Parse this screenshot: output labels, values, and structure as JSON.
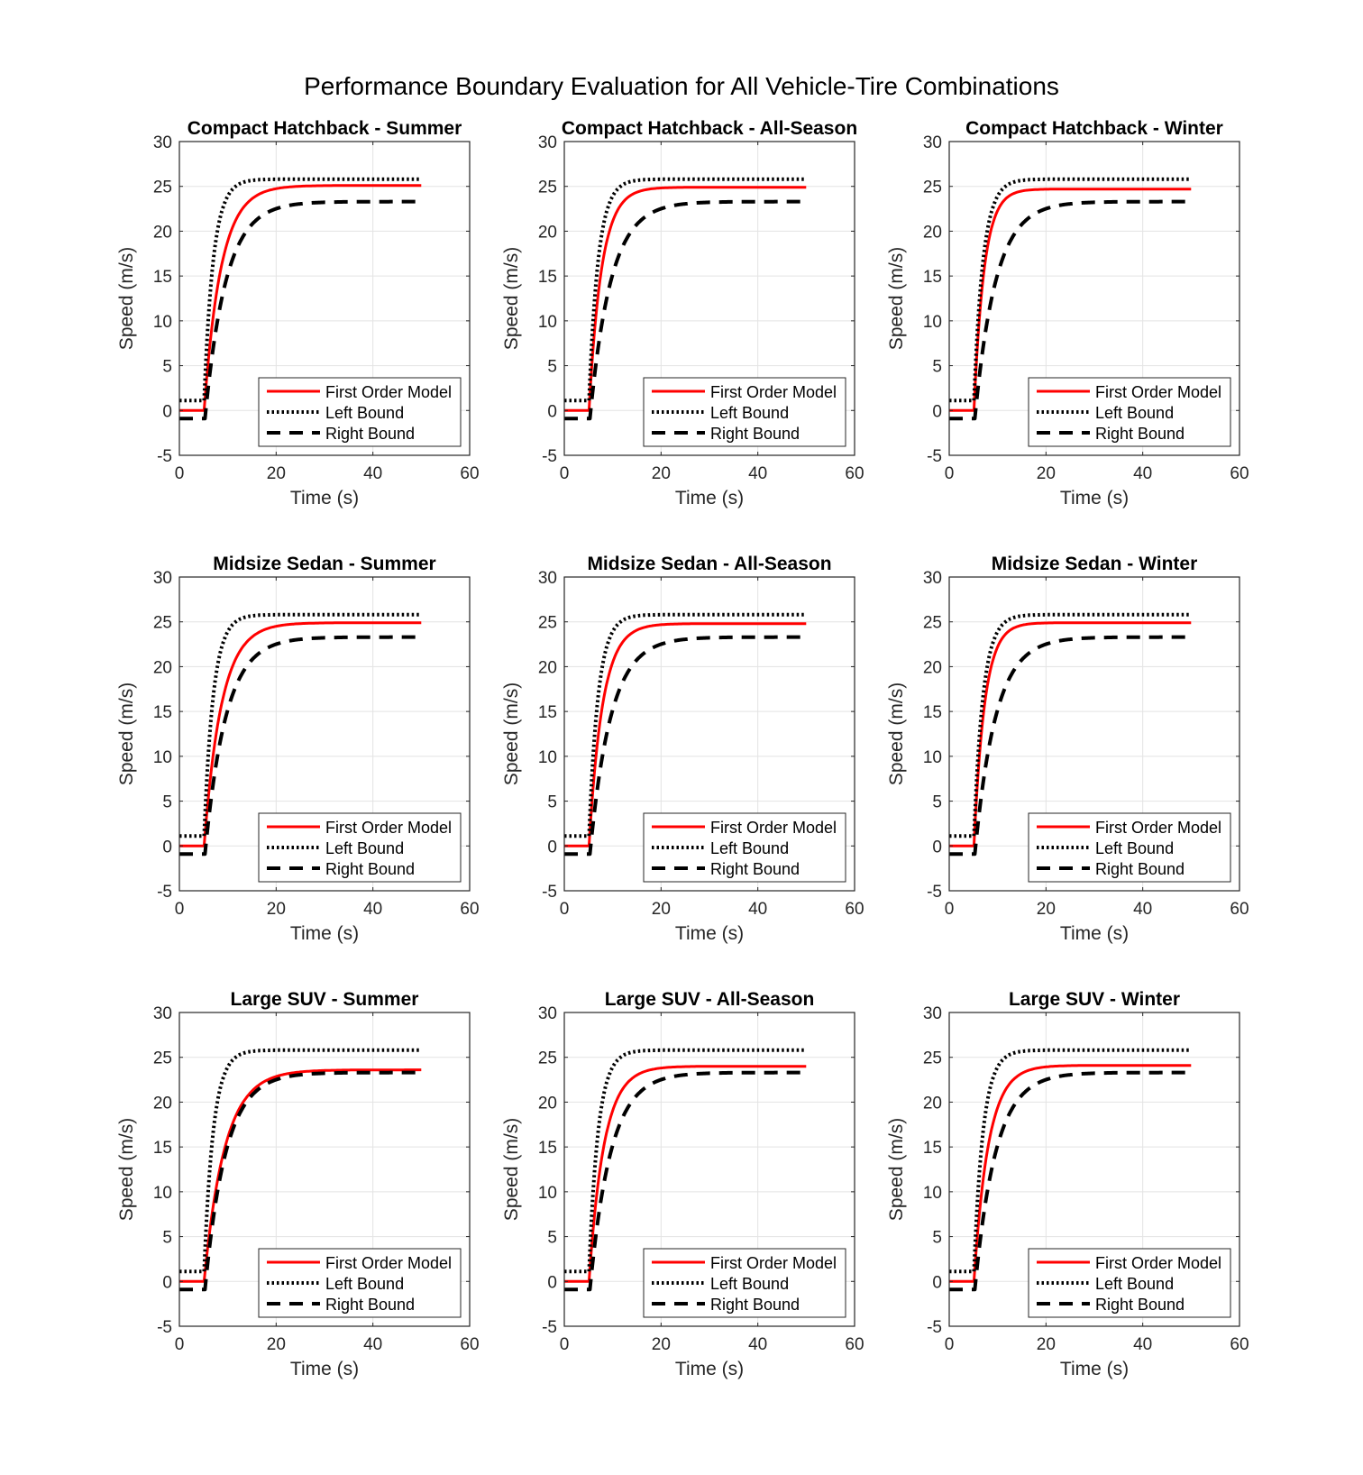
{
  "figure": {
    "title": "Performance Boundary Evaluation for All Vehicle-Tire Combinations"
  },
  "colors": {
    "model": "#ff0000",
    "left_bound": "#000000",
    "right_bound": "#000000",
    "grid": "#e3e3e3",
    "axes": "#262626"
  },
  "chart_data": [
    {
      "type": "line",
      "title": "Compact Hatchback - Summer",
      "xlabel": "Time (s)",
      "ylabel": "Speed (m/s)",
      "xlim": [
        0,
        60
      ],
      "ylim": [
        -5,
        30
      ],
      "xticks": [
        0,
        20,
        40,
        60
      ],
      "yticks": [
        -5,
        0,
        5,
        10,
        15,
        20,
        25,
        30
      ],
      "grid": true,
      "legend_position": "bottom-right",
      "series": [
        {
          "name": "First Order Model",
          "style": "solid",
          "t_step": 5.1,
          "initial": 0,
          "final": 25.1,
          "tau": 3.5,
          "t_end": 50
        },
        {
          "name": "Left Bound",
          "style": "dotted",
          "t_step": 5.1,
          "initial": 1.1,
          "final": 25.8,
          "tau": 1.9,
          "t_end": 50
        },
        {
          "name": "Right Bound",
          "style": "dashed",
          "t_step": 5.3,
          "initial": -0.9,
          "final": 23.3,
          "tau": 4.3,
          "t_end": 50
        }
      ]
    },
    {
      "type": "line",
      "title": "Compact Hatchback - All-Season",
      "xlabel": "Time (s)",
      "ylabel": "Speed (m/s)",
      "xlim": [
        0,
        60
      ],
      "ylim": [
        -5,
        30
      ],
      "xticks": [
        0,
        20,
        40,
        60
      ],
      "yticks": [
        -5,
        0,
        5,
        10,
        15,
        20,
        25,
        30
      ],
      "grid": true,
      "legend_position": "bottom-right",
      "series": [
        {
          "name": "First Order Model",
          "style": "solid",
          "t_step": 5.1,
          "initial": 0,
          "final": 24.9,
          "tau": 2.6,
          "t_end": 50
        },
        {
          "name": "Left Bound",
          "style": "dotted",
          "t_step": 5.1,
          "initial": 1.1,
          "final": 25.8,
          "tau": 1.9,
          "t_end": 50
        },
        {
          "name": "Right Bound",
          "style": "dashed",
          "t_step": 5.3,
          "initial": -0.9,
          "final": 23.3,
          "tau": 4.3,
          "t_end": 50
        }
      ]
    },
    {
      "type": "line",
      "title": "Compact Hatchback - Winter",
      "xlabel": "Time (s)",
      "ylabel": "Speed (m/s)",
      "xlim": [
        0,
        60
      ],
      "ylim": [
        -5,
        30
      ],
      "xticks": [
        0,
        20,
        40,
        60
      ],
      "yticks": [
        -5,
        0,
        5,
        10,
        15,
        20,
        25,
        30
      ],
      "grid": true,
      "legend_position": "bottom-right",
      "series": [
        {
          "name": "First Order Model",
          "style": "solid",
          "t_step": 5.1,
          "initial": 0,
          "final": 24.7,
          "tau": 2.1,
          "t_end": 50
        },
        {
          "name": "Left Bound",
          "style": "dotted",
          "t_step": 5.1,
          "initial": 1.1,
          "final": 25.8,
          "tau": 1.9,
          "t_end": 50
        },
        {
          "name": "Right Bound",
          "style": "dashed",
          "t_step": 5.3,
          "initial": -0.9,
          "final": 23.3,
          "tau": 4.3,
          "t_end": 50
        }
      ]
    },
    {
      "type": "line",
      "title": "Midsize Sedan - Summer",
      "xlabel": "Time (s)",
      "ylabel": "Speed (m/s)",
      "xlim": [
        0,
        60
      ],
      "ylim": [
        -5,
        30
      ],
      "xticks": [
        0,
        20,
        40,
        60
      ],
      "yticks": [
        -5,
        0,
        5,
        10,
        15,
        20,
        25,
        30
      ],
      "grid": true,
      "legend_position": "bottom-right",
      "series": [
        {
          "name": "First Order Model",
          "style": "solid",
          "t_step": 5.1,
          "initial": 0,
          "final": 24.9,
          "tau": 3.6,
          "t_end": 50
        },
        {
          "name": "Left Bound",
          "style": "dotted",
          "t_step": 5.1,
          "initial": 1.1,
          "final": 25.8,
          "tau": 1.9,
          "t_end": 50
        },
        {
          "name": "Right Bound",
          "style": "dashed",
          "t_step": 5.3,
          "initial": -0.9,
          "final": 23.3,
          "tau": 4.3,
          "t_end": 50
        }
      ]
    },
    {
      "type": "line",
      "title": "Midsize Sedan - All-Season",
      "xlabel": "Time (s)",
      "ylabel": "Speed (m/s)",
      "xlim": [
        0,
        60
      ],
      "ylim": [
        -5,
        30
      ],
      "xticks": [
        0,
        20,
        40,
        60
      ],
      "yticks": [
        -5,
        0,
        5,
        10,
        15,
        20,
        25,
        30
      ],
      "grid": true,
      "legend_position": "bottom-right",
      "series": [
        {
          "name": "First Order Model",
          "style": "solid",
          "t_step": 5.1,
          "initial": 0,
          "final": 24.8,
          "tau": 2.8,
          "t_end": 50
        },
        {
          "name": "Left Bound",
          "style": "dotted",
          "t_step": 5.1,
          "initial": 1.1,
          "final": 25.8,
          "tau": 1.9,
          "t_end": 50
        },
        {
          "name": "Right Bound",
          "style": "dashed",
          "t_step": 5.3,
          "initial": -0.9,
          "final": 23.3,
          "tau": 4.3,
          "t_end": 50
        }
      ]
    },
    {
      "type": "line",
      "title": "Midsize Sedan - Winter",
      "xlabel": "Time (s)",
      "ylabel": "Speed (m/s)",
      "xlim": [
        0,
        60
      ],
      "ylim": [
        -5,
        30
      ],
      "xticks": [
        0,
        20,
        40,
        60
      ],
      "yticks": [
        -5,
        0,
        5,
        10,
        15,
        20,
        25,
        30
      ],
      "grid": true,
      "legend_position": "bottom-right",
      "series": [
        {
          "name": "First Order Model",
          "style": "solid",
          "t_step": 5.1,
          "initial": 0,
          "final": 24.9,
          "tau": 2.2,
          "t_end": 50
        },
        {
          "name": "Left Bound",
          "style": "dotted",
          "t_step": 5.1,
          "initial": 1.1,
          "final": 25.8,
          "tau": 1.9,
          "t_end": 50
        },
        {
          "name": "Right Bound",
          "style": "dashed",
          "t_step": 5.3,
          "initial": -0.9,
          "final": 23.3,
          "tau": 4.3,
          "t_end": 50
        }
      ]
    },
    {
      "type": "line",
      "title": "Large SUV - Summer",
      "xlabel": "Time (s)",
      "ylabel": "Speed (m/s)",
      "xlim": [
        0,
        60
      ],
      "ylim": [
        -5,
        30
      ],
      "xticks": [
        0,
        20,
        40,
        60
      ],
      "yticks": [
        -5,
        0,
        5,
        10,
        15,
        20,
        25,
        30
      ],
      "grid": true,
      "legend_position": "bottom-right",
      "series": [
        {
          "name": "First Order Model",
          "style": "solid",
          "t_step": 5.1,
          "initial": 0,
          "final": 23.6,
          "tau": 4.3,
          "t_end": 50
        },
        {
          "name": "Left Bound",
          "style": "dotted",
          "t_step": 5.1,
          "initial": 1.1,
          "final": 25.8,
          "tau": 1.9,
          "t_end": 50
        },
        {
          "name": "Right Bound",
          "style": "dashed",
          "t_step": 5.3,
          "initial": -0.9,
          "final": 23.3,
          "tau": 4.3,
          "t_end": 50
        }
      ]
    },
    {
      "type": "line",
      "title": "Large SUV - All-Season",
      "xlabel": "Time (s)",
      "ylabel": "Speed (m/s)",
      "xlim": [
        0,
        60
      ],
      "ylim": [
        -5,
        30
      ],
      "xticks": [
        0,
        20,
        40,
        60
      ],
      "yticks": [
        -5,
        0,
        5,
        10,
        15,
        20,
        25,
        30
      ],
      "grid": true,
      "legend_position": "bottom-right",
      "series": [
        {
          "name": "First Order Model",
          "style": "solid",
          "t_step": 5.1,
          "initial": 0,
          "final": 24.0,
          "tau": 3.1,
          "t_end": 50
        },
        {
          "name": "Left Bound",
          "style": "dotted",
          "t_step": 5.1,
          "initial": 1.1,
          "final": 25.8,
          "tau": 1.9,
          "t_end": 50
        },
        {
          "name": "Right Bound",
          "style": "dashed",
          "t_step": 5.3,
          "initial": -0.9,
          "final": 23.3,
          "tau": 4.3,
          "t_end": 50
        }
      ]
    },
    {
      "type": "line",
      "title": "Large SUV - Winter",
      "xlabel": "Time (s)",
      "ylabel": "Speed (m/s)",
      "xlim": [
        0,
        60
      ],
      "ylim": [
        -5,
        30
      ],
      "xticks": [
        0,
        20,
        40,
        60
      ],
      "yticks": [
        -5,
        0,
        5,
        10,
        15,
        20,
        25,
        30
      ],
      "grid": true,
      "legend_position": "bottom-right",
      "series": [
        {
          "name": "First Order Model",
          "style": "solid",
          "t_step": 5.1,
          "initial": 0,
          "final": 24.1,
          "tau": 3.0,
          "t_end": 50
        },
        {
          "name": "Left Bound",
          "style": "dotted",
          "t_step": 5.1,
          "initial": 1.1,
          "final": 25.8,
          "tau": 1.9,
          "t_end": 50
        },
        {
          "name": "Right Bound",
          "style": "dashed",
          "t_step": 5.3,
          "initial": -0.9,
          "final": 23.3,
          "tau": 4.3,
          "t_end": 50
        }
      ]
    }
  ]
}
